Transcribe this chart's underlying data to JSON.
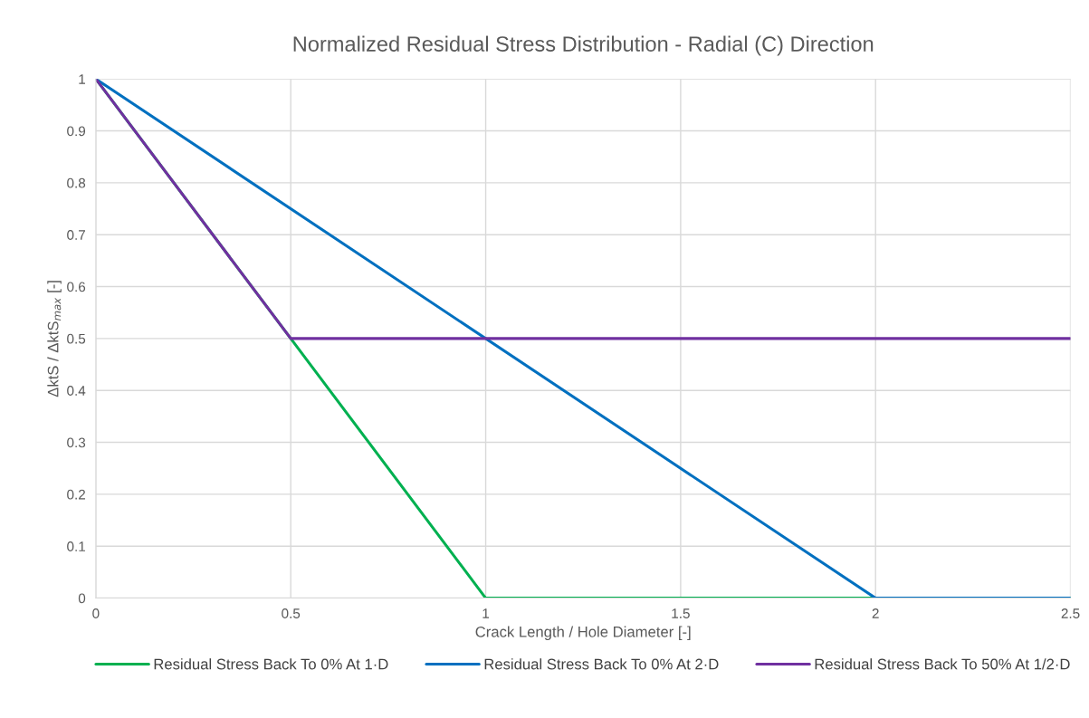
{
  "chart_data": {
    "type": "line",
    "title": "Normalized Residual Stress Distribution - Radial (C) Direction",
    "xlabel": "Crack Length / Hole Diameter [-]",
    "ylabel": "ΔktS / ΔktS$_{max}$ [-]",
    "series": [
      {
        "name": "Residual Stress Back To 0% At 1·D",
        "color": "#00b050",
        "x": [
          0,
          0.5,
          1,
          2.5
        ],
        "values": [
          1,
          0.5,
          0,
          0
        ]
      },
      {
        "name": "Residual Stress Back To 0% At 2·D",
        "color": "#0070c0",
        "x": [
          0,
          2,
          2.5
        ],
        "values": [
          1,
          0,
          0
        ]
      },
      {
        "name": "Residual Stress Back To 50% At 1/2·D",
        "color": "#7030a0",
        "x": [
          0,
          0.5,
          2.5
        ],
        "values": [
          1,
          0.5,
          0.5
        ]
      }
    ],
    "xlim": [
      0,
      2.5
    ],
    "xticks": [
      0,
      0.5,
      1,
      1.5,
      2,
      2.5
    ],
    "ylim": [
      0,
      1
    ],
    "yticks": [
      0,
      0.1,
      0.2,
      0.3,
      0.4,
      0.5,
      0.6,
      0.7,
      0.8,
      0.9,
      1
    ],
    "grid": true,
    "legend": "bottom",
    "marker": "none",
    "line_style": "solid"
  }
}
